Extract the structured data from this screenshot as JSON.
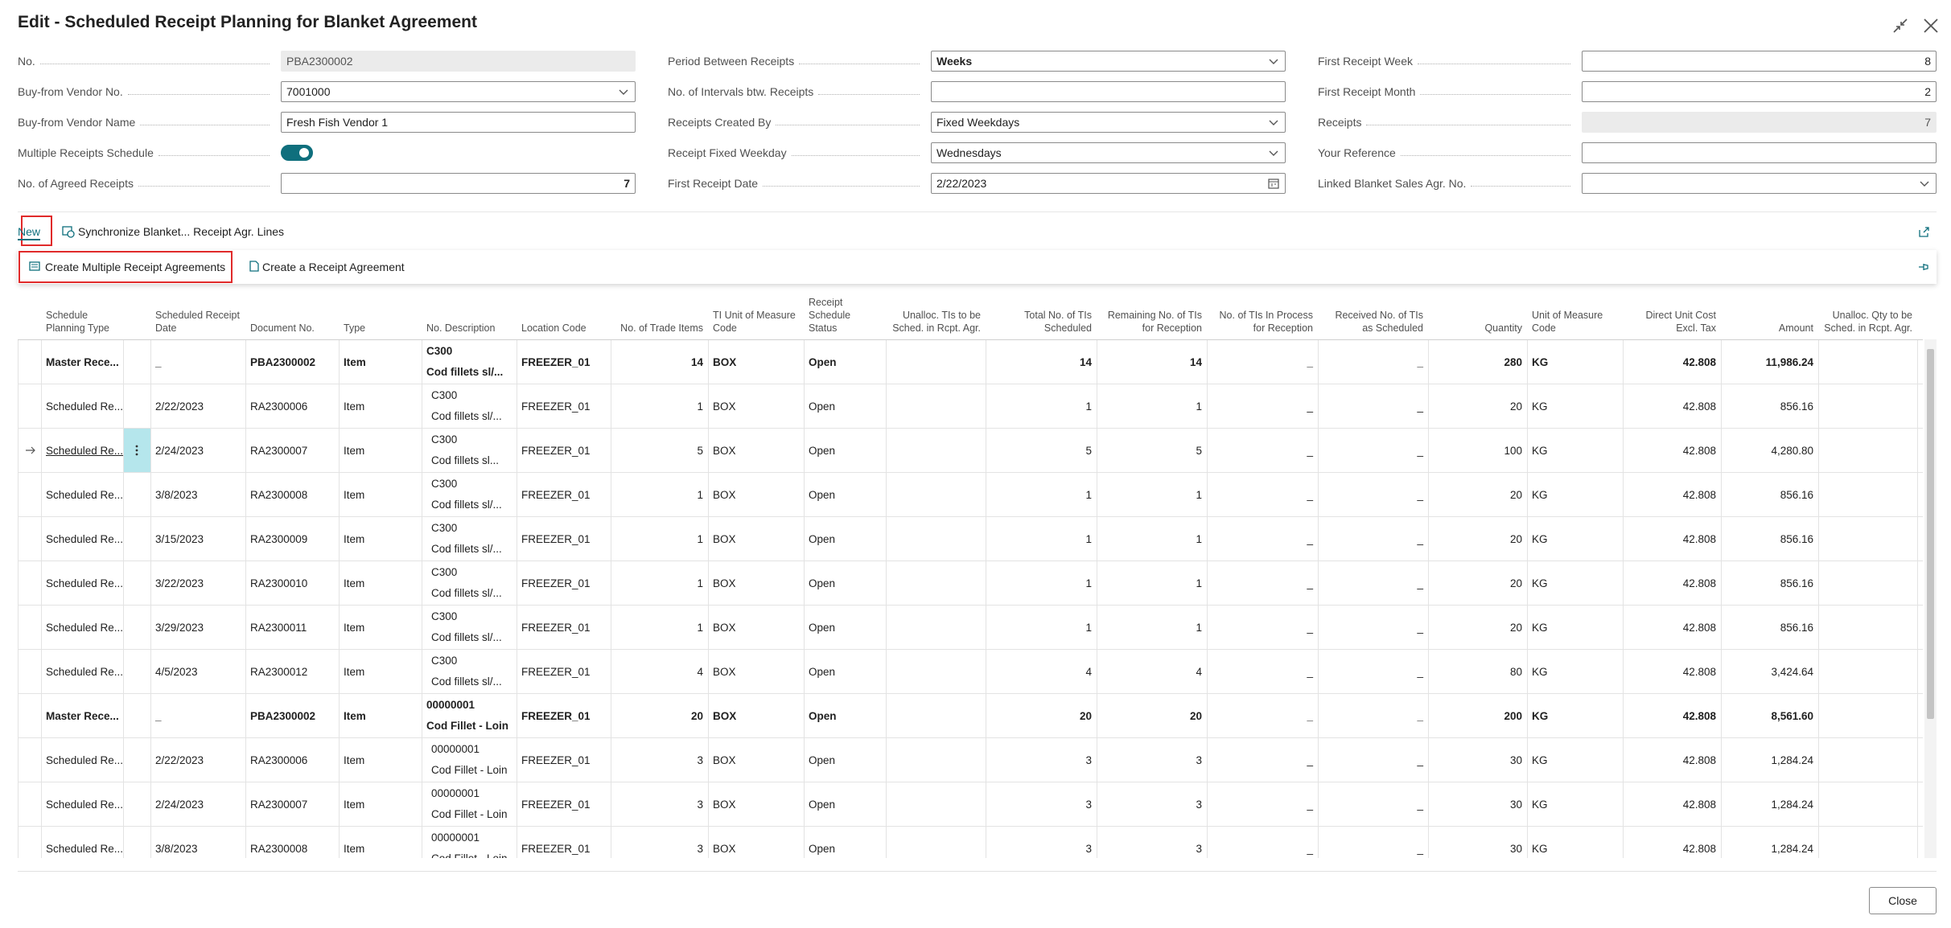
{
  "header": {
    "title": "Edit - Scheduled Receipt Planning for Blanket Agreement"
  },
  "form": {
    "columns": [
      [
        {
          "label": "No.",
          "value": "PBA2300002",
          "kind": "readonly"
        },
        {
          "label": "Buy-from Vendor No.",
          "value": "7001000",
          "kind": "dropdown"
        },
        {
          "label": "Buy-from Vendor Name",
          "value": "Fresh Fish Vendor 1",
          "kind": "text"
        },
        {
          "label": "Multiple Receipts Schedule",
          "kind": "toggle",
          "on": true
        },
        {
          "label": "No. of Agreed Receipts",
          "value": "7",
          "kind": "number",
          "bold": true
        }
      ],
      [
        {
          "label": "Period Between Receipts",
          "value": "Weeks",
          "kind": "dropdown",
          "bold": true
        },
        {
          "label": "No. of Intervals btw. Receipts",
          "kind": "text"
        },
        {
          "label": "Receipts Created By",
          "value": "Fixed Weekdays",
          "kind": "dropdown"
        },
        {
          "label": "Receipt Fixed Weekday",
          "value": "Wednesdays",
          "kind": "dropdown"
        },
        {
          "label": "First Receipt Date",
          "value": "2/22/2023",
          "kind": "date"
        }
      ],
      [
        {
          "label": "First Receipt Week",
          "value": "8",
          "kind": "number"
        },
        {
          "label": "First Receipt Month",
          "value": "2",
          "kind": "number"
        },
        {
          "label": "Receipts",
          "value": "7",
          "kind": "readonly-number"
        },
        {
          "label": "Your Reference",
          "kind": "text"
        },
        {
          "label": "Linked Blanket Sales Agr. No.",
          "kind": "dropdown"
        }
      ]
    ]
  },
  "actions": {
    "items": [
      "New",
      "Synchronize Blanket... Receipt Agr. Lines"
    ],
    "submenu": [
      "Create Multiple Receipt Agreements",
      "Create a Receipt Agreement"
    ]
  },
  "table": {
    "columns": [
      "Schedule Planning Type",
      "Scheduled Receipt Date",
      "Document No.",
      "Type",
      "No. Description",
      "Location Code",
      "No. of Trade Items",
      "TI Unit of Measure Code",
      "Receipt Schedule Status",
      "Unalloc. TIs to be Sched. in Rcpt. Agr.",
      "Total No. of TIs Scheduled",
      "Remaining No. of TIs for Reception",
      "No. of TIs In Process for Reception",
      "Received No. of TIs as Scheduled",
      "Quantity",
      "Unit of Measure Code",
      "Direct Unit Cost Excl. Tax",
      "Amount",
      "Unalloc. Qty to be Sched. in Rcpt. Agr."
    ],
    "rows": [
      {
        "bold": true,
        "cells": [
          "Master Rece...",
          "_",
          "PBA2300002",
          "Item",
          [
            "C300",
            "Cod fillets sl/..."
          ],
          "FREEZER_01",
          "14",
          "BOX",
          "Open",
          null,
          "14",
          "14",
          "_",
          "_",
          "280",
          "KG",
          "42.808",
          "11,986.24",
          null
        ]
      },
      {
        "cells": [
          "Scheduled Re...",
          "2/22/2023",
          "RA2300006",
          "Item",
          [
            "C300",
            "Cod fillets sl/..."
          ],
          "FREEZER_01",
          "1",
          "BOX",
          "Open",
          null,
          "1",
          "1",
          "_",
          "_",
          "20",
          "KG",
          "42.808",
          "856.16",
          null
        ]
      },
      {
        "selected": true,
        "cells": [
          "Scheduled Re...",
          "2/24/2023",
          "RA2300007",
          "Item",
          [
            "C300",
            "Cod fillets sl..."
          ],
          "FREEZER_01",
          "5",
          "BOX",
          "Open",
          null,
          "5",
          "5",
          "_",
          "_",
          "100",
          "KG",
          "42.808",
          "4,280.80",
          null
        ]
      },
      {
        "cells": [
          "Scheduled Re...",
          "3/8/2023",
          "RA2300008",
          "Item",
          [
            "C300",
            "Cod fillets sl/..."
          ],
          "FREEZER_01",
          "1",
          "BOX",
          "Open",
          null,
          "1",
          "1",
          "_",
          "_",
          "20",
          "KG",
          "42.808",
          "856.16",
          null
        ]
      },
      {
        "cells": [
          "Scheduled Re...",
          "3/15/2023",
          "RA2300009",
          "Item",
          [
            "C300",
            "Cod fillets sl/..."
          ],
          "FREEZER_01",
          "1",
          "BOX",
          "Open",
          null,
          "1",
          "1",
          "_",
          "_",
          "20",
          "KG",
          "42.808",
          "856.16",
          null
        ]
      },
      {
        "cells": [
          "Scheduled Re...",
          "3/22/2023",
          "RA2300010",
          "Item",
          [
            "C300",
            "Cod fillets sl/..."
          ],
          "FREEZER_01",
          "1",
          "BOX",
          "Open",
          null,
          "1",
          "1",
          "_",
          "_",
          "20",
          "KG",
          "42.808",
          "856.16",
          null
        ]
      },
      {
        "cells": [
          "Scheduled Re...",
          "3/29/2023",
          "RA2300011",
          "Item",
          [
            "C300",
            "Cod fillets sl/..."
          ],
          "FREEZER_01",
          "1",
          "BOX",
          "Open",
          null,
          "1",
          "1",
          "_",
          "_",
          "20",
          "KG",
          "42.808",
          "856.16",
          null
        ]
      },
      {
        "cells": [
          "Scheduled Re...",
          "4/5/2023",
          "RA2300012",
          "Item",
          [
            "C300",
            "Cod fillets sl/..."
          ],
          "FREEZER_01",
          "4",
          "BOX",
          "Open",
          null,
          "4",
          "4",
          "_",
          "_",
          "80",
          "KG",
          "42.808",
          "3,424.64",
          null
        ]
      },
      {
        "bold": true,
        "cells": [
          "Master Rece...",
          "_",
          "PBA2300002",
          "Item",
          [
            "00000001",
            "Cod Fillet - Loin"
          ],
          "FREEZER_01",
          "20",
          "BOX",
          "Open",
          null,
          "20",
          "20",
          "_",
          "_",
          "200",
          "KG",
          "42.808",
          "8,561.60",
          null
        ]
      },
      {
        "cells": [
          "Scheduled Re...",
          "2/22/2023",
          "RA2300006",
          "Item",
          [
            "00000001",
            "Cod Fillet - Loin"
          ],
          "FREEZER_01",
          "3",
          "BOX",
          "Open",
          null,
          "3",
          "3",
          "_",
          "_",
          "30",
          "KG",
          "42.808",
          "1,284.24",
          null
        ]
      },
      {
        "cells": [
          "Scheduled Re...",
          "2/24/2023",
          "RA2300007",
          "Item",
          [
            "00000001",
            "Cod Fillet - Loin"
          ],
          "FREEZER_01",
          "3",
          "BOX",
          "Open",
          null,
          "3",
          "3",
          "_",
          "_",
          "30",
          "KG",
          "42.808",
          "1,284.24",
          null
        ]
      },
      {
        "cells": [
          "Scheduled Re...",
          "3/8/2023",
          "RA2300008",
          "Item",
          [
            "00000001",
            "Cod Fillet - Loin"
          ],
          "FREEZER_01",
          "3",
          "BOX",
          "Open",
          null,
          "3",
          "3",
          "_",
          "_",
          "30",
          "KG",
          "42.808",
          "1,284.24",
          null
        ]
      }
    ]
  },
  "footer": {
    "close": "Close"
  }
}
